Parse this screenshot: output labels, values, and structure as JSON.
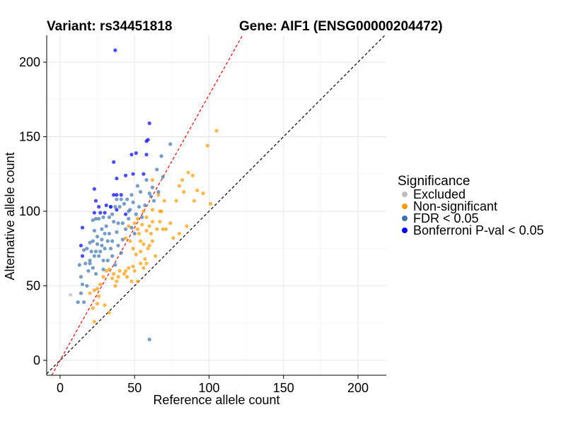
{
  "chart_data": {
    "type": "scatter",
    "title_left": "Variant: rs34451818",
    "title_right": "Gene: AIF1 (ENSG00000204472)",
    "xlabel": "Reference allele count",
    "ylabel": "Alternative allele count",
    "xlim": [
      -9,
      219
    ],
    "ylim": [
      -10,
      218
    ],
    "xticks": [
      0,
      50,
      100,
      150,
      200
    ],
    "yticks": [
      0,
      50,
      100,
      150,
      200
    ],
    "xtick_labels": [
      "0",
      "50",
      "100",
      "150",
      "200"
    ],
    "ytick_labels": [
      "0",
      "50",
      "100",
      "150",
      "200"
    ],
    "grid": true,
    "reference_lines": [
      {
        "name": "identity",
        "slope": 1,
        "intercept": 0,
        "color": "#000000",
        "dash": true
      },
      {
        "name": "expected",
        "slope": 1.78,
        "intercept": 0,
        "color": "#ff0000",
        "dash": true
      }
    ],
    "legend": {
      "title": "Significance",
      "position": "right",
      "entries": [
        {
          "label": "Excluded",
          "color": "#bdbdbd"
        },
        {
          "label": "Non-significant",
          "color": "#ff9a00"
        },
        {
          "label": "FDR < 0.05",
          "color": "#3a73b0"
        },
        {
          "label": "Bonferroni P-val < 0.05",
          "color": "#0000ff"
        }
      ]
    },
    "series": [
      {
        "name": "Excluded",
        "color": "#bdbdbd",
        "points": [
          [
            7,
            44
          ]
        ]
      },
      {
        "name": "Non-significant",
        "color": "#ff9a00",
        "points": [
          [
            105,
            154
          ],
          [
            99,
            144
          ],
          [
            86,
            126
          ],
          [
            89,
            124
          ],
          [
            82,
            121
          ],
          [
            92,
            114
          ],
          [
            80,
            117
          ],
          [
            78,
            107
          ],
          [
            101,
            105
          ],
          [
            90,
            107
          ],
          [
            62,
            121
          ],
          [
            83,
            113
          ],
          [
            96,
            112
          ],
          [
            66,
            111
          ],
          [
            70,
            107
          ],
          [
            62,
            101
          ],
          [
            67,
            100
          ],
          [
            56,
            100
          ],
          [
            58,
            96
          ],
          [
            62,
            93
          ],
          [
            60,
            90
          ],
          [
            67,
            93
          ],
          [
            55,
            91
          ],
          [
            65,
            88
          ],
          [
            58,
            87
          ],
          [
            53,
            85
          ],
          [
            69,
            88
          ],
          [
            52,
            88
          ],
          [
            50,
            92
          ],
          [
            71,
            88
          ],
          [
            76,
            82
          ],
          [
            62,
            80
          ],
          [
            60,
            77
          ],
          [
            59,
            75
          ],
          [
            47,
            80
          ],
          [
            54,
            80
          ],
          [
            44,
            82
          ],
          [
            49,
            75
          ],
          [
            51,
            71
          ],
          [
            54,
            65
          ],
          [
            56,
            62
          ],
          [
            49,
            63
          ],
          [
            46,
            62
          ],
          [
            50,
            60
          ],
          [
            44,
            60
          ],
          [
            40,
            60
          ],
          [
            39,
            56
          ],
          [
            38,
            53
          ],
          [
            52,
            53
          ],
          [
            48,
            53
          ],
          [
            43,
            58
          ],
          [
            36,
            58
          ],
          [
            35,
            55
          ],
          [
            33,
            61
          ],
          [
            31,
            60
          ],
          [
            29,
            56
          ],
          [
            27,
            51
          ],
          [
            25,
            48
          ],
          [
            23,
            47
          ],
          [
            26,
            43
          ],
          [
            25,
            38
          ],
          [
            30,
            37
          ],
          [
            33,
            32
          ],
          [
            22,
            35
          ],
          [
            23,
            26
          ],
          [
            20,
            45
          ],
          [
            37,
            50
          ],
          [
            64,
            70
          ],
          [
            57,
            68
          ],
          [
            45,
            56
          ],
          [
            56,
            78
          ],
          [
            85,
            90
          ],
          [
            80,
            85
          ],
          [
            74,
            92
          ],
          [
            46,
            90
          ],
          [
            52,
            95
          ],
          [
            54,
            73
          ],
          [
            58,
            65
          ],
          [
            61,
            85
          ],
          [
            68,
            100
          ]
        ]
      },
      {
        "name": "FDR < 0.05",
        "color": "#3a73b0",
        "points": [
          [
            74,
            145
          ],
          [
            68,
            137
          ],
          [
            65,
            128
          ],
          [
            69,
            123
          ],
          [
            62,
            116
          ],
          [
            54,
            113
          ],
          [
            61,
            110
          ],
          [
            48,
            111
          ],
          [
            45,
            108
          ],
          [
            41,
            108
          ],
          [
            38,
            108
          ],
          [
            37,
            103
          ],
          [
            34,
            103
          ],
          [
            40,
            103
          ],
          [
            47,
            101
          ],
          [
            53,
            103
          ],
          [
            57,
            104
          ],
          [
            35,
            98
          ],
          [
            33,
            96
          ],
          [
            29,
            96
          ],
          [
            26,
            95
          ],
          [
            24,
            95
          ],
          [
            22,
            94
          ],
          [
            23,
            87
          ],
          [
            28,
            88
          ],
          [
            31,
            90
          ],
          [
            36,
            93
          ],
          [
            42,
            92
          ],
          [
            46,
            95
          ],
          [
            30,
            85
          ],
          [
            33,
            85
          ],
          [
            38,
            86
          ],
          [
            28,
            81
          ],
          [
            25,
            83
          ],
          [
            22,
            80
          ],
          [
            20,
            79
          ],
          [
            18,
            75
          ],
          [
            16,
            74
          ],
          [
            21,
            73
          ],
          [
            24,
            73
          ],
          [
            27,
            73
          ],
          [
            30,
            75
          ],
          [
            34,
            75
          ],
          [
            39,
            77
          ],
          [
            42,
            81
          ],
          [
            26,
            70
          ],
          [
            23,
            70
          ],
          [
            20,
            67
          ],
          [
            29,
            67
          ],
          [
            32,
            67
          ],
          [
            35,
            70
          ],
          [
            17,
            65
          ],
          [
            20,
            65
          ],
          [
            13,
            64
          ],
          [
            19,
            60
          ],
          [
            22,
            62
          ],
          [
            24,
            58
          ],
          [
            14,
            56
          ],
          [
            15,
            51
          ],
          [
            18,
            50
          ],
          [
            14,
            45
          ],
          [
            12,
            39
          ],
          [
            16,
            39
          ],
          [
            35,
            80
          ],
          [
            50,
            85
          ],
          [
            60,
            14
          ],
          [
            46,
            100
          ],
          [
            51,
            98
          ],
          [
            55,
            96
          ],
          [
            48,
            89
          ],
          [
            44,
            88
          ],
          [
            39,
            92
          ],
          [
            32,
            80
          ],
          [
            28,
            77
          ],
          [
            25,
            78
          ],
          [
            29,
            61
          ],
          [
            37,
            64
          ],
          [
            41,
            72
          ],
          [
            49,
            106
          ],
          [
            43,
            105
          ],
          [
            52,
            117
          ],
          [
            58,
            121
          ],
          [
            60,
            112
          ],
          [
            66,
            113
          ],
          [
            63,
            107
          ]
        ]
      },
      {
        "name": "Bonferroni P-val < 0.05",
        "color": "#0000ff",
        "points": [
          [
            37,
            208
          ],
          [
            60,
            159
          ],
          [
            59,
            148
          ],
          [
            58,
            147
          ],
          [
            51,
            139
          ],
          [
            58,
            138
          ],
          [
            48,
            138
          ],
          [
            36,
            133
          ],
          [
            38,
            122
          ],
          [
            44,
            124
          ],
          [
            49,
            125
          ],
          [
            56,
            125
          ],
          [
            23,
            115
          ],
          [
            36,
            111
          ],
          [
            38,
            111
          ],
          [
            41,
            111
          ],
          [
            24,
            107
          ],
          [
            26,
            103
          ],
          [
            38,
            101
          ],
          [
            27,
            99
          ],
          [
            30,
            99
          ],
          [
            23,
            99
          ],
          [
            31,
            104
          ],
          [
            34,
            103
          ],
          [
            15,
            89
          ],
          [
            14,
            77
          ],
          [
            15,
            70
          ],
          [
            44,
            98
          ]
        ]
      }
    ]
  }
}
